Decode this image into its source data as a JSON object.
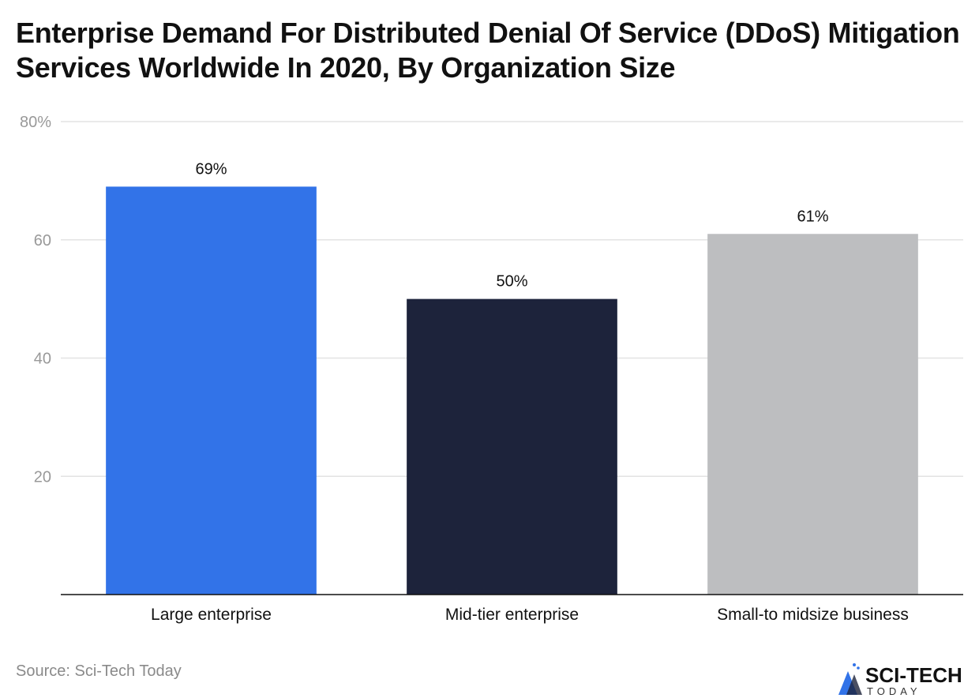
{
  "title": "Enterprise Demand For Distributed Denial Of Service (DDoS) Mitigation Services Worldwide In 2020, By Organization Size",
  "source": "Source: Sci-Tech Today",
  "logo": {
    "main": "SCI-TECH",
    "sub": "TODAY"
  },
  "chart_data": {
    "type": "bar",
    "title": "Enterprise Demand For Distributed Denial Of Service (DDoS) Mitigation Services Worldwide In 2020, By Organization Size",
    "categories": [
      "Large enterprise",
      "Mid-tier enterprise",
      "Small-to midsize business"
    ],
    "values": [
      69,
      50,
      61
    ],
    "data_labels": [
      "69%",
      "50%",
      "61%"
    ],
    "colors": [
      "#3273e8",
      "#1d233b",
      "#bdbec0"
    ],
    "ylim": [
      0,
      80
    ],
    "yticks": [
      20,
      40,
      60,
      80
    ],
    "ytick_labels": [
      "20",
      "40",
      "60",
      "80%"
    ],
    "grid": true,
    "xlabel": "",
    "ylabel": ""
  }
}
